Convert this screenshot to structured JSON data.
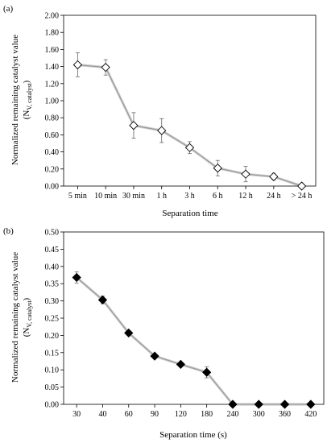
{
  "chart_data": [
    {
      "type": "line",
      "panel_label": "(a)",
      "xlabel": "Separation time",
      "ylabel": "Normalized remaining catalyst value",
      "ylabel_sub": "(N",
      "ylabel_subscript": "V, catalyst",
      "ylabel_close": ")",
      "categories": [
        "5 min",
        "10 min",
        "30 min",
        "1 h",
        "3 h",
        "6 h",
        "12 h",
        "24 h",
        "> 24 h"
      ],
      "values": [
        1.42,
        1.39,
        0.71,
        0.65,
        0.45,
        0.21,
        0.14,
        0.11,
        0.0
      ],
      "errors": [
        0.14,
        0.09,
        0.15,
        0.14,
        0.07,
        0.09,
        0.09,
        0.04,
        0.0
      ],
      "ylim": [
        0,
        2.0
      ],
      "yticks": [
        "0.00",
        "0.20",
        "0.40",
        "0.60",
        "0.80",
        "1.00",
        "1.20",
        "1.40",
        "1.60",
        "1.80",
        "2.00"
      ],
      "marker": "open-diamond",
      "line_color": "#9a9a9a",
      "marker_fill": "#ffffff"
    },
    {
      "type": "line",
      "panel_label": "(b)",
      "xlabel": "Separation time (s)",
      "ylabel": "Normalized remaining catalyst value",
      "ylabel_sub": "(N",
      "ylabel_subscript": "V, catalyst",
      "ylabel_close": ")",
      "categories": [
        "30",
        "40",
        "60",
        "90",
        "120",
        "180",
        "240",
        "300",
        "360",
        "420"
      ],
      "values": [
        0.368,
        0.303,
        0.207,
        0.14,
        0.116,
        0.093,
        0.0,
        0.0,
        0.0,
        0.0
      ],
      "errors": [
        0.016,
        0.011,
        0.006,
        0.006,
        0.005,
        0.016,
        0.0,
        0.0,
        0.0,
        0.0
      ],
      "ylim": [
        0,
        0.5
      ],
      "yticks": [
        "0.00",
        "0.05",
        "0.10",
        "0.15",
        "0.20",
        "0.25",
        "0.30",
        "0.35",
        "0.40",
        "0.45",
        "0.50"
      ],
      "marker": "filled-diamond",
      "line_color": "#9a9a9a",
      "marker_fill": "#000000"
    }
  ]
}
